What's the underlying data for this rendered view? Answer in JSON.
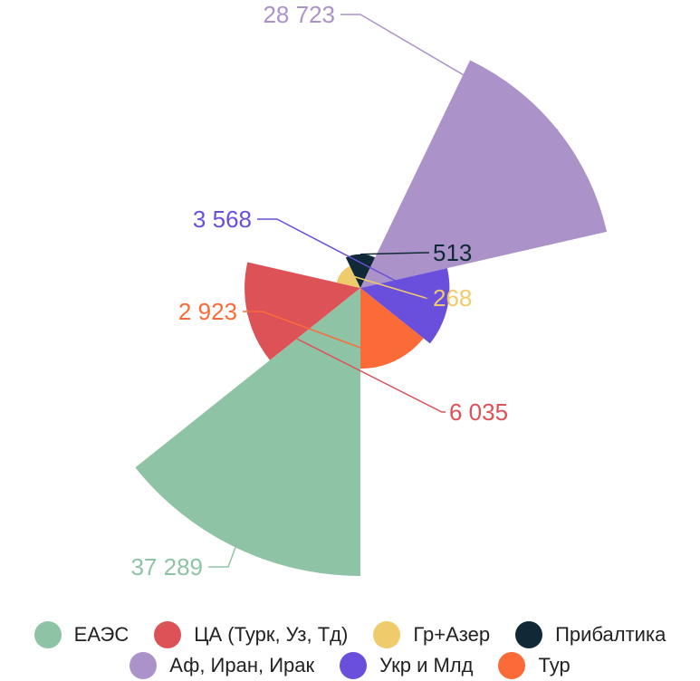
{
  "chart_data": {
    "type": "polar-area",
    "series": [
      {
        "name": "ЕАЭС",
        "value": 37289,
        "label": "37 289",
        "color": "#8fc3a5"
      },
      {
        "name": "ЦА (Турк, Уз, Тд)",
        "value": 6035,
        "label": "6 035",
        "color": "#dc5257"
      },
      {
        "name": "Гр+Азер",
        "value": 268,
        "label": "268",
        "color": "#f0cb6b"
      },
      {
        "name": "Прибалтика",
        "value": 513,
        "label": "513",
        "color": "#0f2a36"
      },
      {
        "name": "Аф, Иран, Ирак",
        "value": 28723,
        "label": "28 723",
        "color": "#ab92c8"
      },
      {
        "name": "Укр и Млд",
        "value": 3568,
        "label": "3 568",
        "color": "#6a4fdc"
      },
      {
        "name": "Тур",
        "value": 2923,
        "label": "2 923",
        "color": "#fa6b38"
      }
    ],
    "legend": {
      "position": "bottom",
      "rows": [
        [
          "ЕАЭС",
          "ЦА (Турк, Уз, Тд)",
          "Гр+Азер",
          "Прибалтика"
        ],
        [
          "Аф, Иран, Ирак",
          "Укр и Млд",
          "Тур"
        ]
      ]
    }
  }
}
